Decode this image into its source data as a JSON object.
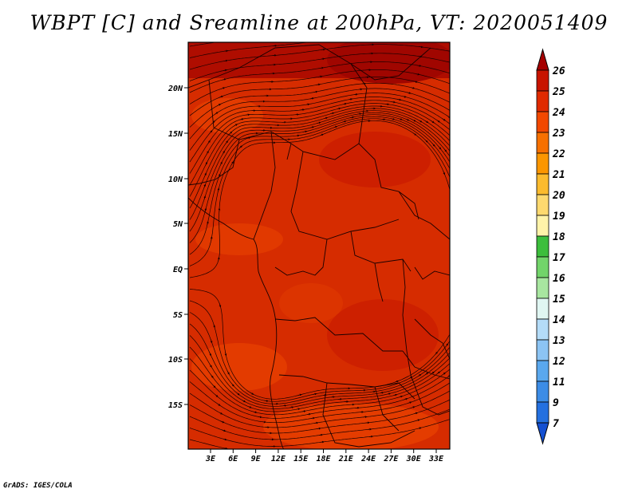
{
  "title": "WBPT [C] and Sreamline at 200hPa, VT: 2020051409",
  "footer": "GrADS: IGES/COLA",
  "map": {
    "lat_labels": [
      "20N",
      "15N",
      "10N",
      "5N",
      "EQ",
      "5S",
      "10S",
      "15S"
    ],
    "lon_labels": [
      "3E",
      "6E",
      "9E",
      "12E",
      "15E",
      "18E",
      "21E",
      "24E",
      "27E",
      "30E",
      "33E"
    ],
    "field_colors": [
      "#c01200",
      "#d62c00",
      "#e84200",
      "#a80800"
    ]
  },
  "colorbar": {
    "labels": [
      "26",
      "25",
      "24",
      "23",
      "22",
      "21",
      "20",
      "19",
      "18",
      "17",
      "16",
      "15",
      "14",
      "13",
      "12",
      "11",
      "9",
      "7"
    ],
    "colors": [
      "#a50000",
      "#c81400",
      "#e02a00",
      "#f24800",
      "#f77000",
      "#fb9600",
      "#fbbb2e",
      "#fdd96f",
      "#fff3a9",
      "#3cbe3c",
      "#72d46a",
      "#a8e6a0",
      "#e0f6f2",
      "#b4dcf8",
      "#8cc4f4",
      "#5aa8ee",
      "#3c8ce6",
      "#2470e0",
      "#1450d2"
    ]
  }
}
